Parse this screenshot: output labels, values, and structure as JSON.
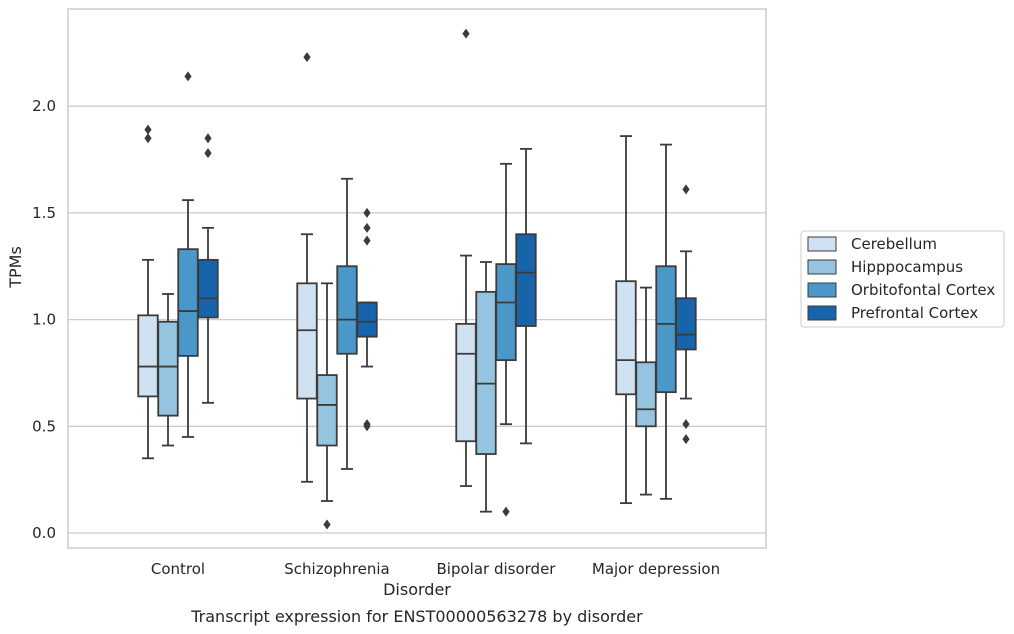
{
  "chart_data": {
    "type": "box",
    "title": "Transcript expression for ENST00000563278 by disorder",
    "xlabel": "Disorder",
    "ylabel": "TPMs",
    "categories": [
      "Control",
      "Schizophrenia",
      "Bipolar disorder",
      "Major depression"
    ],
    "ylim": [
      -0.07,
      2.47
    ],
    "yticks": [
      0.0,
      0.5,
      1.0,
      1.5,
      2.0
    ],
    "ytick_labels": [
      "0.0",
      "0.5",
      "1.0",
      "1.5",
      "2.0"
    ],
    "grid": "horizontal",
    "legend_position": "right",
    "series": [
      {
        "name": "Cerebellum",
        "color": "#d0e1f2",
        "boxes": [
          {
            "whisker_low": 0.35,
            "q1": 0.64,
            "median": 0.78,
            "q3": 1.02,
            "whisker_high": 1.28,
            "outliers": [
              1.85,
              1.89
            ]
          },
          {
            "whisker_low": 0.24,
            "q1": 0.63,
            "median": 0.95,
            "q3": 1.17,
            "whisker_high": 1.4,
            "outliers": [
              2.23
            ]
          },
          {
            "whisker_low": 0.22,
            "q1": 0.43,
            "median": 0.84,
            "q3": 0.98,
            "whisker_high": 1.3,
            "outliers": [
              2.34
            ]
          },
          {
            "whisker_low": 0.14,
            "q1": 0.65,
            "median": 0.81,
            "q3": 1.18,
            "whisker_high": 1.86,
            "outliers": []
          }
        ]
      },
      {
        "name": "Hipppocampus",
        "color": "#94c4df",
        "boxes": [
          {
            "whisker_low": 0.41,
            "q1": 0.55,
            "median": 0.78,
            "q3": 0.99,
            "whisker_high": 1.12,
            "outliers": []
          },
          {
            "whisker_low": 0.15,
            "q1": 0.41,
            "median": 0.6,
            "q3": 0.74,
            "whisker_high": 1.17,
            "outliers": [
              0.04
            ]
          },
          {
            "whisker_low": 0.1,
            "q1": 0.37,
            "median": 0.7,
            "q3": 1.13,
            "whisker_high": 1.27,
            "outliers": []
          },
          {
            "whisker_low": 0.18,
            "q1": 0.5,
            "median": 0.58,
            "q3": 0.8,
            "whisker_high": 1.15,
            "outliers": []
          }
        ]
      },
      {
        "name": "Orbitofontal Cortex",
        "color": "#4a98c9",
        "boxes": [
          {
            "whisker_low": 0.45,
            "q1": 0.83,
            "median": 1.04,
            "q3": 1.33,
            "whisker_high": 1.56,
            "outliers": [
              2.14
            ]
          },
          {
            "whisker_low": 0.3,
            "q1": 0.84,
            "median": 1.0,
            "q3": 1.25,
            "whisker_high": 1.66,
            "outliers": []
          },
          {
            "whisker_low": 0.51,
            "q1": 0.81,
            "median": 1.08,
            "q3": 1.26,
            "whisker_high": 1.73,
            "outliers": [
              0.1
            ]
          },
          {
            "whisker_low": 0.16,
            "q1": 0.66,
            "median": 0.98,
            "q3": 1.25,
            "whisker_high": 1.82,
            "outliers": []
          }
        ]
      },
      {
        "name": "Prefrontal Cortex",
        "color": "#1764ab",
        "boxes": [
          {
            "whisker_low": 0.61,
            "q1": 1.01,
            "median": 1.1,
            "q3": 1.28,
            "whisker_high": 1.43,
            "outliers": [
              1.78,
              1.85
            ]
          },
          {
            "whisker_low": 0.78,
            "q1": 0.92,
            "median": 0.99,
            "q3": 1.08,
            "whisker_high": 1.08,
            "outliers": [
              0.5,
              0.51,
              1.37,
              1.43,
              1.5
            ]
          },
          {
            "whisker_low": 0.42,
            "q1": 0.97,
            "median": 1.22,
            "q3": 1.4,
            "whisker_high": 1.8,
            "outliers": []
          },
          {
            "whisker_low": 0.63,
            "q1": 0.86,
            "median": 0.93,
            "q3": 1.1,
            "whisker_high": 1.32,
            "outliers": [
              0.44,
              0.51,
              1.61
            ]
          }
        ]
      }
    ]
  },
  "style": {
    "line_color": "#3b3b3b",
    "grid_color": "#cccccc",
    "frame_color": "#cccccc",
    "text_color": "#262626"
  }
}
